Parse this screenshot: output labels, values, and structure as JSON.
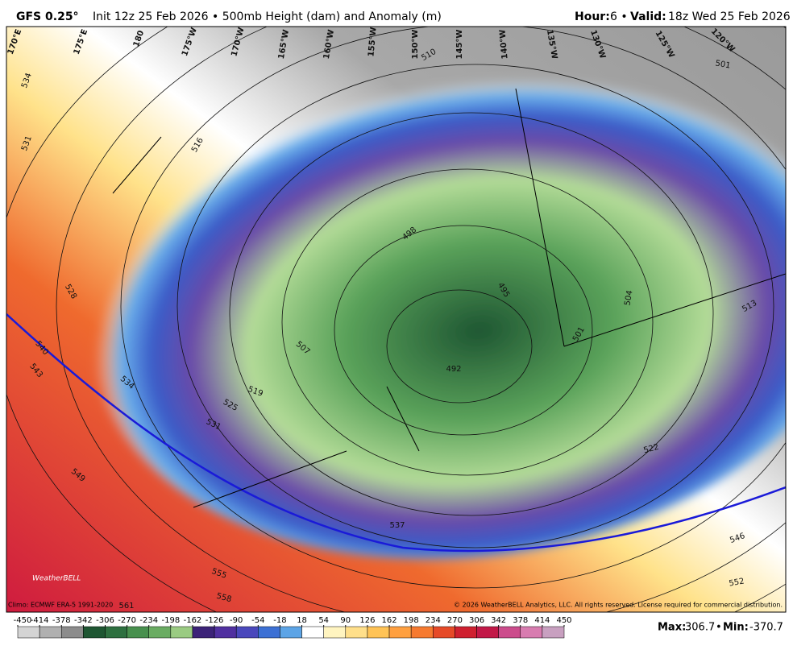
{
  "header": {
    "model": "GFS 0.25°",
    "info": "Init 12z 25 Feb 2026 • 500mb Height (dam) and Anomaly (m)",
    "hour_label": "Hour:",
    "hour": "6 •",
    "valid_label": "Valid:",
    "valid": "18z Wed 25 Feb 2026"
  },
  "map": {
    "longitude_labels": [
      "170°E",
      "175°E",
      "180",
      "175°W",
      "170°W",
      "165°W",
      "160°W",
      "155°W",
      "150°W",
      "145°W",
      "140°W",
      "135°W",
      "130°W",
      "125°W",
      "120°W"
    ],
    "contour_labels": [
      534,
      531,
      528,
      540,
      543,
      534,
      525,
      531,
      549,
      555,
      558,
      561,
      516,
      510,
      498,
      495,
      507,
      519,
      492,
      501,
      504,
      513,
      522,
      537,
      546,
      552,
      501
    ],
    "climo_note": "Climo: ECMWF ERA-5 1991-2020",
    "copyright": "© 2026 WeatherBELL Analytics, LLC. All rights reserved. License required for commercial distribution.",
    "logo": "WeatherBELL"
  },
  "colorbar": {
    "ticks": [
      -450,
      -414,
      -378,
      -342,
      -306,
      -270,
      -234,
      -198,
      -162,
      -126,
      -90,
      -54,
      -18,
      18,
      54,
      90,
      126,
      162,
      198,
      234,
      270,
      306,
      342,
      378,
      414,
      450
    ],
    "colors": [
      "#d4d4d4",
      "#b0b0b0",
      "#8c8c8c",
      "#1e5632",
      "#2e7040",
      "#48904e",
      "#6aac62",
      "#9acb82",
      "#3c2378",
      "#5030a0",
      "#4a48bc",
      "#3c70d4",
      "#5ca4e6",
      "#ffffff",
      "#fff4c0",
      "#ffdf8a",
      "#ffc356",
      "#ffa040",
      "#f67a30",
      "#e64a28",
      "#cf2030",
      "#c21848",
      "#cc4c8c",
      "#d87cb0",
      "#c8a0c0"
    ]
  },
  "stats": {
    "max_label": "Max:",
    "max": 306.7,
    "separator": "•",
    "min_label": "Min:",
    "min": -370.7
  }
}
